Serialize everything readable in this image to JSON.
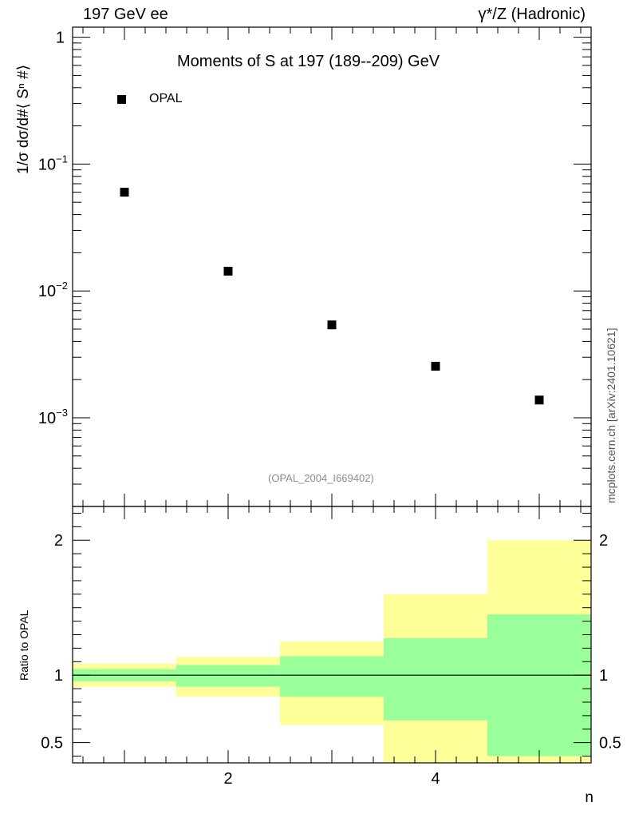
{
  "header": {
    "left": "197 GeV ee",
    "right": "γ*/Z (Hadronic)"
  },
  "plot": {
    "title": "Moments of S at 197 (189--209) GeV",
    "ylabel": "1/σ  dσ/d#⟨ Sⁿ #⟩",
    "reference": "(OPAL_2004_I669402)",
    "watermark": "mcplots.cern.ch [arXiv:2401.10621]",
    "legend": "OPAL"
  },
  "ratio": {
    "ylabel": "Ratio to OPAL"
  },
  "xlabel": "n",
  "colors": {
    "green": "#99ff99",
    "yellow": "#ffff99",
    "marker": "#000000"
  },
  "chart_data": [
    {
      "type": "scatter",
      "title": "Moments of S at 197 (189--209) GeV",
      "xlabel": "n",
      "ylabel": "1/σ  dσ/d#⟨ Sⁿ #⟩",
      "yscale": "log",
      "xlim": [
        0.5,
        5.5
      ],
      "ylim": [
        0.0002,
        1.2
      ],
      "legend_position": "top-left",
      "y_ticks": [
        {
          "value": 1,
          "label": "1"
        },
        {
          "value": 0.1,
          "label": "10",
          "sup": "−1"
        },
        {
          "value": 0.01,
          "label": "10",
          "sup": "−2"
        },
        {
          "value": 0.001,
          "label": "10",
          "sup": "−3"
        }
      ],
      "series": [
        {
          "name": "OPAL",
          "x": [
            1,
            2,
            3,
            4,
            5
          ],
          "y": [
            0.06,
            0.0143,
            0.0054,
            0.00255,
            0.00138
          ]
        }
      ]
    },
    {
      "type": "area",
      "ylabel": "Ratio to OPAL",
      "xlabel": "n",
      "xlim": [
        0.5,
        5.5
      ],
      "ylim": [
        0.35,
        2.25
      ],
      "x_ticks": [
        2,
        4
      ],
      "y_ticks": [
        0.5,
        1,
        2
      ],
      "reference_line": 1,
      "bins": [
        {
          "lo": 0.5,
          "hi": 1.5,
          "green": [
            0.955,
            1.045
          ],
          "yellow": [
            0.915,
            1.085
          ]
        },
        {
          "lo": 1.5,
          "hi": 2.5,
          "green": [
            0.915,
            1.075
          ],
          "yellow": [
            0.84,
            1.135
          ]
        },
        {
          "lo": 2.5,
          "hi": 3.5,
          "green": [
            0.84,
            1.14
          ],
          "yellow": [
            0.63,
            1.25
          ]
        },
        {
          "lo": 3.5,
          "hi": 4.5,
          "green": [
            0.665,
            1.275
          ],
          "yellow": [
            0.35,
            1.6
          ]
        },
        {
          "lo": 4.5,
          "hi": 5.5,
          "green": [
            0.4,
            1.45
          ],
          "yellow": [
            0.35,
            2.0
          ]
        }
      ]
    }
  ]
}
